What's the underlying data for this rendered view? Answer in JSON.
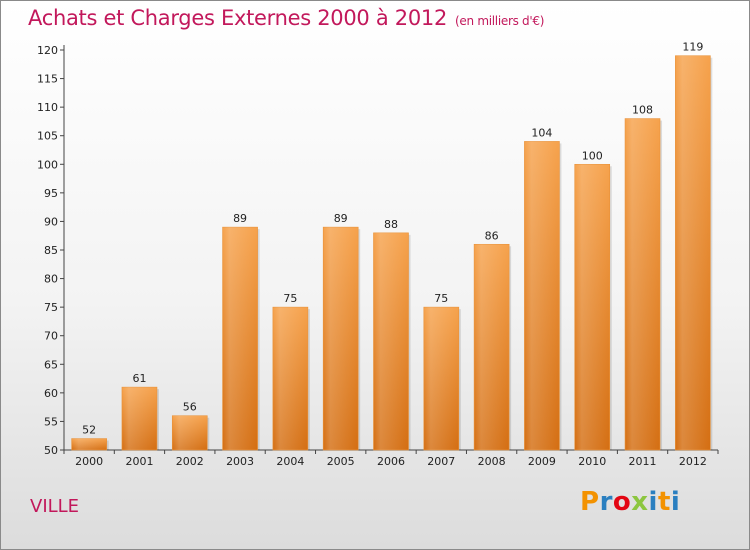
{
  "header": {
    "title": "Achats et Charges Externes 2000 à 2012",
    "unit": "(en milliers d'€)"
  },
  "footer": {
    "commune": "VILLE",
    "logo_letters": [
      "P",
      "r",
      "o",
      "x",
      "i",
      "t",
      "i"
    ],
    "logo_colors": [
      "#f39200",
      "#2a7fc0",
      "#e30613",
      "#8cc63f",
      "#2a7fc0",
      "#f39200",
      "#2a7fc0"
    ]
  },
  "colors": {
    "title": "#c2185b",
    "bar_light": "#f6a24c",
    "bar_dark": "#d46e12"
  },
  "chart_data": {
    "type": "bar",
    "title": "Achats et Charges Externes 2000 à 2012",
    "xlabel": "",
    "ylabel": "",
    "categories": [
      "2000",
      "2001",
      "2002",
      "2003",
      "2004",
      "2005",
      "2006",
      "2007",
      "2008",
      "2009",
      "2010",
      "2011",
      "2012"
    ],
    "values": [
      52,
      61,
      56,
      89,
      75,
      89,
      88,
      75,
      86,
      104,
      100,
      108,
      119
    ],
    "ylim": [
      50,
      120
    ],
    "yticks": [
      50,
      55,
      60,
      65,
      70,
      75,
      80,
      85,
      90,
      95,
      100,
      105,
      110,
      115,
      120
    ],
    "grid": false,
    "data_labels": true
  }
}
